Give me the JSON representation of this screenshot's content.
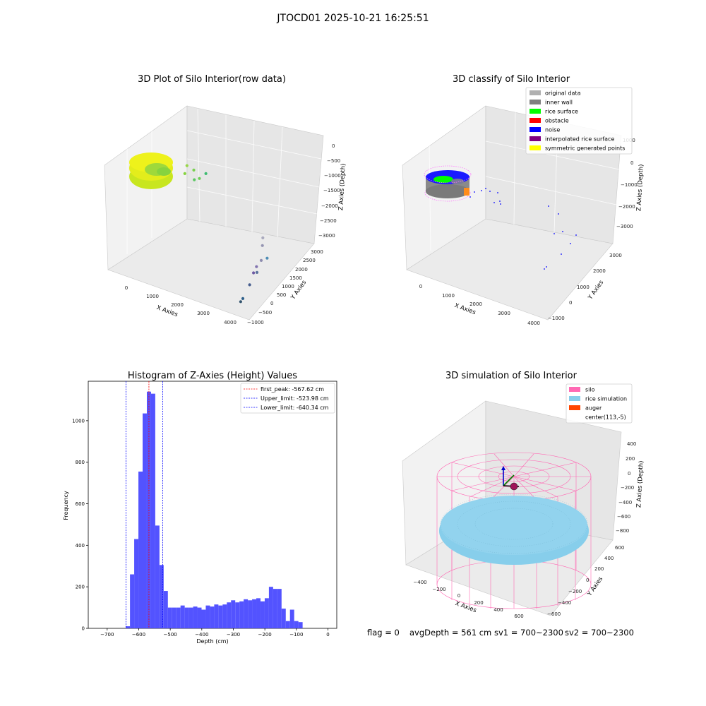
{
  "suptitle": "JTOCD01 2025-10-21 16:25:51",
  "status_line": {
    "flag": "flag = 0",
    "avg_depth": "avgDepth = 561 cm",
    "sv1": "sv1 = 700~2300",
    "sv2": "sv2 = 700~2300"
  },
  "colors": {
    "hist_bar": "#4a4aff",
    "peak_line": "#ff0000",
    "limit_line": "#0000ff",
    "silo": "#ff69b4",
    "rice": "#87ceeb",
    "auger": "#ff4500",
    "rice_surface": "#00ff00",
    "noise": "#0000ff",
    "symmetric": "#ffff00"
  },
  "chart_data": [
    {
      "type": "scatter",
      "title": "3D Plot of Silo Interior(row data)",
      "xlabel": "X Axies",
      "ylabel": "Y Axies",
      "zlabel": "Z Axies (Depth)",
      "x_ticks": [
        "0",
        "1000",
        "2000",
        "3000",
        "4000"
      ],
      "y_ticks": [
        "−1000",
        "−500",
        "0",
        "500",
        "1000",
        "1500",
        "2000",
        "2500",
        "3000"
      ],
      "z_ticks": [
        "0",
        "−500",
        "−1000",
        "−1500",
        "−2000",
        "−2500",
        "−3000"
      ],
      "points": [
        {
          "x": 3850,
          "y": 1150,
          "z": -1620,
          "c": "#a9a9bd"
        },
        {
          "x": 3900,
          "y": 1050,
          "z": -1780,
          "c": "#9595b2"
        },
        {
          "x": 3950,
          "y": 900,
          "z": -2150,
          "c": "#8e8db0"
        },
        {
          "x": 4050,
          "y": 1100,
          "z": -2150,
          "c": "#4f8db5"
        },
        {
          "x": 3900,
          "y": 700,
          "z": -2250,
          "c": "#8274b0"
        },
        {
          "x": 3950,
          "y": 650,
          "z": -2380,
          "c": "#5b739e"
        },
        {
          "x": 3850,
          "y": 600,
          "z": -2420,
          "c": "#6d5aa3"
        },
        {
          "x": 3800,
          "y": 450,
          "z": -2750,
          "c": "#465d8e"
        },
        {
          "x": 3700,
          "y": 200,
          "z": -3100,
          "c": "#2e5f8a"
        },
        {
          "x": 3650,
          "y": 150,
          "z": -3200,
          "c": "#34556f"
        },
        {
          "x": 700,
          "y": 1500,
          "z": -1300,
          "c": "#98d649"
        },
        {
          "x": 750,
          "y": 1300,
          "z": -1400,
          "c": "#86d33f"
        },
        {
          "x": 900,
          "y": 1600,
          "z": -1400,
          "c": "#7ad151"
        },
        {
          "x": 1050,
          "y": 1400,
          "z": -1500,
          "c": "#5cc863"
        },
        {
          "x": 1150,
          "y": 1550,
          "z": -1500,
          "c": "#6ece58"
        },
        {
          "x": 1300,
          "y": 1700,
          "z": -1350,
          "c": "#3fbc73"
        }
      ]
    },
    {
      "type": "scatter",
      "title": "3D classify of Silo Interior",
      "xlabel": "X Axies",
      "ylabel": "Y Axies",
      "zlabel": "Z Axies (Depth)",
      "x_ticks": [
        "0",
        "1000",
        "2000",
        "3000",
        "4000"
      ],
      "y_ticks": [
        "−1000",
        "0",
        "1000",
        "2000",
        "3000"
      ],
      "z_ticks": [
        "1000",
        "0",
        "−1000",
        "−2000",
        "−3000"
      ],
      "legend": [
        {
          "label": "original data",
          "color": "#b0b0b0"
        },
        {
          "label": "inner wall",
          "color": "#808080"
        },
        {
          "label": "rice surface",
          "color": "#00ff00"
        },
        {
          "label": "obstacle",
          "color": "#ff0000"
        },
        {
          "label": "noise",
          "color": "#0000ff"
        },
        {
          "label": "interpolated rice surface",
          "color": "#800080"
        },
        {
          "label": "symmetric generated points",
          "color": "#ffff00"
        }
      ]
    },
    {
      "type": "bar",
      "title": "Histogram of Z-Axies (Height) Values",
      "xlabel": "Depth (cm)",
      "ylabel": "Frequency",
      "xlim": [
        -760,
        28
      ],
      "ylim": [
        0,
        1190
      ],
      "x_ticks": [
        -700,
        -600,
        -500,
        -400,
        -300,
        -200,
        -100,
        0
      ],
      "y_ticks": [
        0,
        200,
        400,
        600,
        800,
        1000
      ],
      "bin_start": -641,
      "bin_width": 13.35,
      "values": [
        10,
        260,
        430,
        755,
        1035,
        1140,
        1130,
        495,
        305,
        180,
        100,
        100,
        100,
        110,
        100,
        100,
        105,
        100,
        90,
        110,
        105,
        115,
        110,
        115,
        125,
        135,
        125,
        130,
        140,
        135,
        140,
        145,
        130,
        145,
        200,
        190,
        190,
        95,
        35,
        90,
        35,
        30
      ],
      "lines": [
        {
          "label": "first_peak: -567.62 cm",
          "x": -567.62,
          "color": "#ff0000"
        },
        {
          "label": "Upper_limit: -523.98 cm",
          "x": -523.98,
          "color": "#0000ff"
        },
        {
          "label": "Lower_limit: -640.34 cm",
          "x": -640.34,
          "color": "#0000ff"
        }
      ]
    },
    {
      "type": "3d-surface",
      "title": "3D simulation of Silo Interior",
      "xlabel": "X Axies",
      "ylabel": "Y Axies",
      "zlabel": "Z Axies (Depth)",
      "x_ticks": [
        "−400",
        "−200",
        "0",
        "200",
        "400",
        "600"
      ],
      "y_ticks": [
        "−600",
        "−400",
        "−200",
        "0",
        "200",
        "400",
        "600"
      ],
      "z_ticks": [
        "400",
        "200",
        "0",
        "−200",
        "−400",
        "−600",
        "−800"
      ],
      "legend": [
        {
          "label": "silo",
          "color": "#ff69b4"
        },
        {
          "label": "rice simulation",
          "color": "#87ceeb"
        },
        {
          "label": "auger",
          "color": "#ff4500"
        },
        {
          "label": "center(113,-5)",
          "color": ""
        }
      ]
    }
  ]
}
